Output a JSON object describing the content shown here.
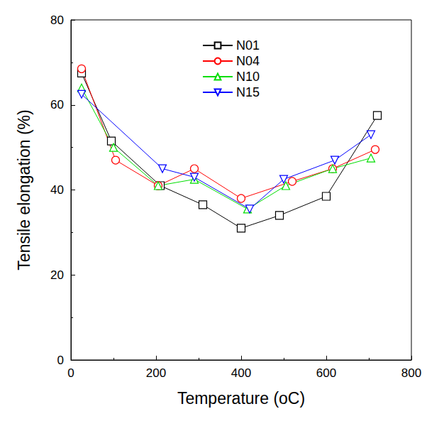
{
  "chart_data": {
    "type": "line",
    "x_label": "Temperature (oC)",
    "y_label": "Tensile elongation (%)",
    "xlim": [
      0,
      800
    ],
    "xticks": [
      0,
      200,
      400,
      600,
      800
    ],
    "ylim": [
      0,
      80
    ],
    "yticks": [
      0,
      20,
      40,
      60,
      80
    ],
    "grid": false,
    "legend": "top",
    "series": [
      {
        "name": "N01",
        "color": "#000000",
        "marker": "square",
        "x": [
          25,
          95,
          210,
          310,
          400,
          490,
          600,
          720
        ],
        "values": [
          67.5,
          51.5,
          41,
          36.5,
          31,
          34,
          38.5,
          57.5
        ]
      },
      {
        "name": "N04",
        "color": "#ff0000",
        "marker": "circle",
        "x": [
          25,
          105,
          205,
          290,
          400,
          520,
          615,
          715
        ],
        "values": [
          68.5,
          47,
          41,
          45,
          38,
          42,
          45,
          49.5
        ]
      },
      {
        "name": "N10",
        "color": "#00dd00",
        "marker": "triangle-up",
        "x": [
          25,
          100,
          205,
          290,
          415,
          505,
          615,
          705
        ],
        "values": [
          64,
          50,
          41,
          42.5,
          35.5,
          41,
          45,
          47.5
        ]
      },
      {
        "name": "N15",
        "color": "#0000ff",
        "marker": "triangle-down",
        "x": [
          25,
          215,
          290,
          420,
          500,
          620,
          705
        ],
        "values": [
          62.5,
          45,
          43,
          35.5,
          42.5,
          47,
          53
        ]
      }
    ]
  }
}
